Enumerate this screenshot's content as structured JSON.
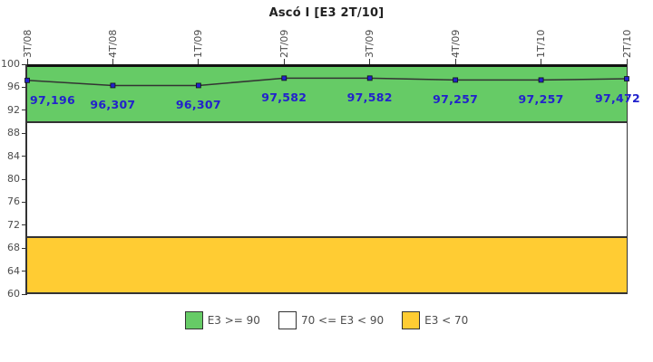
{
  "chart_data": {
    "type": "line",
    "title": "Ascó I [E3 2T/10]",
    "categories": [
      "3T/08",
      "4T/08",
      "1T/09",
      "2T/09",
      "3T/09",
      "4T/09",
      "1T/10",
      "2T/10"
    ],
    "series": [
      {
        "name": "E3",
        "values": [
          97.196,
          96.307,
          96.307,
          97.582,
          97.582,
          97.257,
          97.257,
          97.472
        ]
      }
    ],
    "point_labels": [
      "97,196",
      "96,307",
      "96,307",
      "97,582",
      "97,582",
      "97,257",
      "97,257",
      "97,472"
    ],
    "ylim": [
      60,
      100
    ],
    "yticks": [
      100,
      96,
      92,
      88,
      84,
      80,
      76,
      72,
      68,
      64,
      60
    ],
    "grid": "off",
    "legend_position": "bottom",
    "bands": [
      {
        "label": "E3 >= 90",
        "from": 90,
        "to": 100,
        "color": "#66CB66"
      },
      {
        "label": "70 <= E3 < 90",
        "from": 70,
        "to": 90,
        "color": "#FFFFFF"
      },
      {
        "label": "E3 < 70",
        "from": 60,
        "to": 70,
        "color": "#FFCC33"
      }
    ],
    "colors": {
      "line": "#333333",
      "marker": "#2222CC",
      "marker_edge": "#111111",
      "point_label": "#2222CC",
      "axis": "#333333",
      "axis_text": "#4d4d4d",
      "top_border": "#111111"
    }
  }
}
